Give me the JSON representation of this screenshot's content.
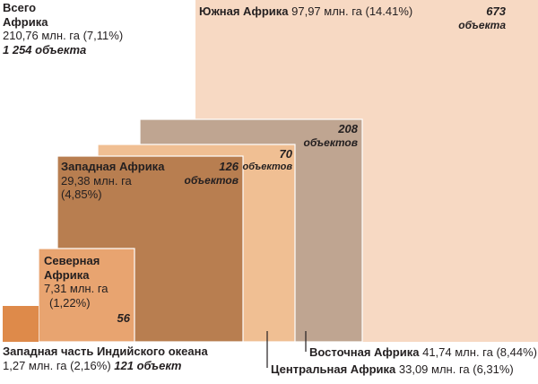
{
  "chart_data": {
    "type": "nested-squares",
    "total": {
      "line1": "Всего",
      "line2": "Африка",
      "area": "210,76 млн. га (7,11%)",
      "objects": "1 254 объекта"
    },
    "series": [
      {
        "name": "Южная Африка",
        "area_mha": 97.97,
        "area_text": "97,97 млн. га (14.41%)",
        "objects": 673,
        "objects_word": "объекта",
        "color": "#f7d9c3"
      },
      {
        "name": "Восточная Африка",
        "area_mha": 41.74,
        "area_text": "41,74 млн. га (8,44%)",
        "objects": 208,
        "objects_word": "объектов",
        "color": "#bfa591"
      },
      {
        "name": "Центральная Африка",
        "area_mha": 33.09,
        "area_text": "33,09 млн. га (6,31%)",
        "objects": 70,
        "objects_word": "объектов",
        "color": "#f0bf93"
      },
      {
        "name": "Западная Африка",
        "area_mha": 29.38,
        "area_line1": "29,38 млн. га",
        "area_line2": "(4,85%)",
        "objects": 126,
        "objects_word": "объектов",
        "color": "#b87e50"
      },
      {
        "name_line1": "Северная",
        "name_line2": "Африка",
        "area_mha": 7.31,
        "area_line1": "7,31 млн. га",
        "area_line2": "(1,22%)",
        "objects": 56,
        "color": "#e8a470"
      },
      {
        "name": "Западная часть Индийского океана",
        "area_mha": 1.27,
        "area_text": "1,27 млн. га (2,16%)",
        "objects_text": "121 объект",
        "color": "#de8a4a"
      }
    ]
  }
}
